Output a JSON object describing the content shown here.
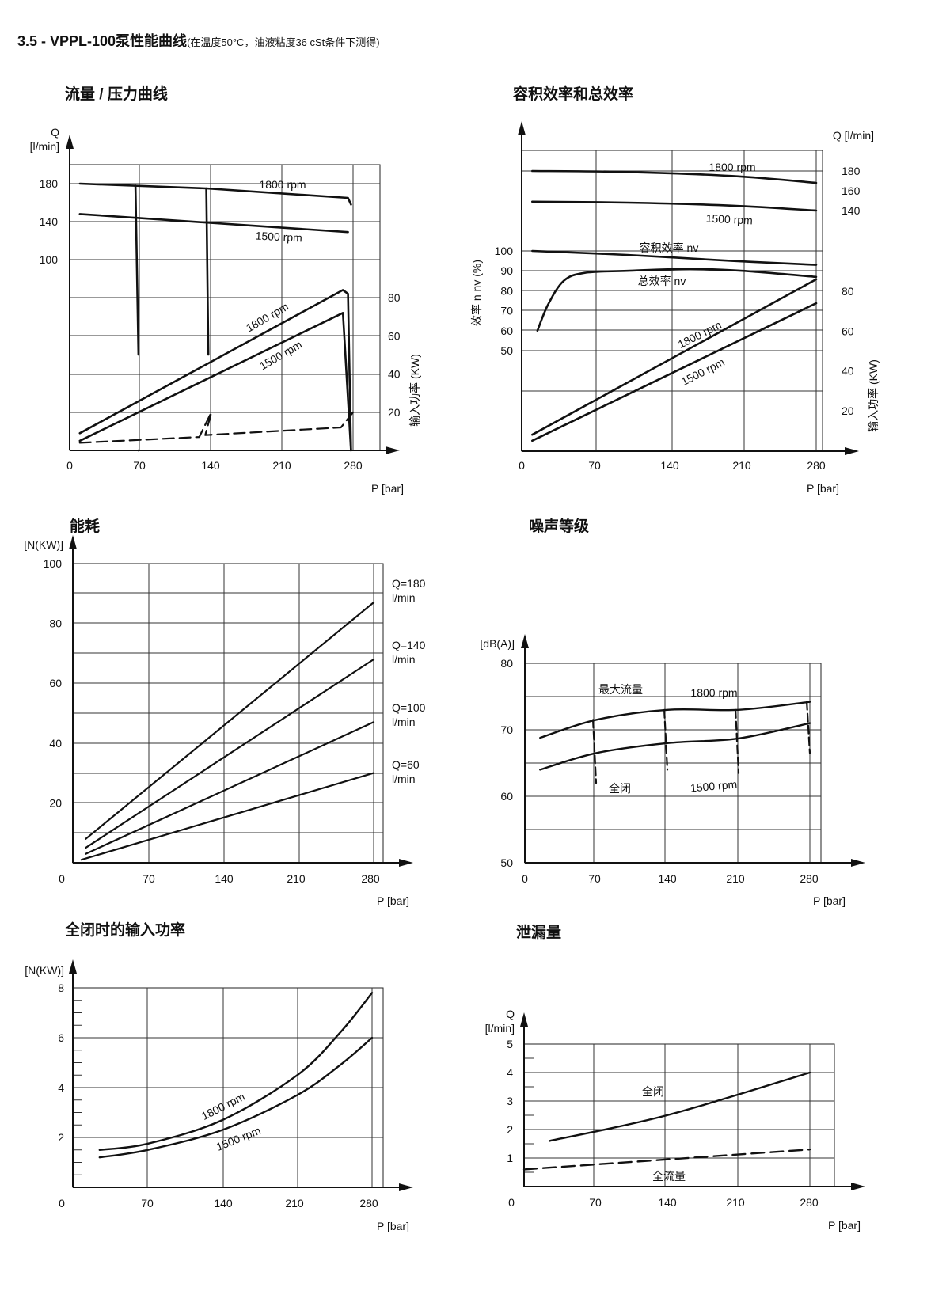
{
  "page": {
    "title": "3.5 - VPPL-100泵性能曲线",
    "subtitle": "(在温度50°C，油液粘度36 cSt条件下测得)"
  },
  "chart_data": [
    {
      "id": "flow-pressure",
      "type": "line",
      "title": "流量 / 压力曲线",
      "xlabel": "P [bar]",
      "ylabel": "Q [l/min]",
      "y2label": "输入功率 (KW)",
      "x_ticks": [
        "0",
        "70",
        "140",
        "210",
        "280"
      ],
      "y_ticks": [
        "100",
        "140",
        "180"
      ],
      "y2_ticks": [
        "20",
        "40",
        "60",
        "80"
      ],
      "grid": true,
      "series": [
        {
          "name": "1800 rpm",
          "axis": "flow",
          "points": [
            [
              10,
              180
            ],
            [
              135,
              175
            ],
            [
              275,
              165
            ],
            [
              278,
              158
            ]
          ]
        },
        {
          "name": "1500 rpm",
          "axis": "flow",
          "points": [
            [
              10,
              148
            ],
            [
              275,
              129
            ]
          ]
        },
        {
          "name": "1800 rpm",
          "axis": "power",
          "points": [
            [
              10,
              9
            ],
            [
              270,
              84
            ],
            [
              275,
              82
            ],
            [
              278,
              0
            ]
          ]
        },
        {
          "name": "1500 rpm",
          "axis": "power",
          "points": [
            [
              10,
              5
            ],
            [
              270,
              72
            ],
            [
              278,
              0
            ]
          ]
        }
      ],
      "cutoffs": [
        {
          "points": [
            [
              65,
              178
            ],
            [
              68,
              0
            ]
          ]
        },
        {
          "points": [
            [
              135,
              175
            ],
            [
              137,
              0
            ]
          ]
        }
      ],
      "dead_head_power": {
        "points": [
          [
            10,
            4
          ],
          [
            128,
            7
          ],
          [
            140,
            20
          ],
          [
            134,
            8
          ],
          [
            268,
            12
          ],
          [
            280,
            20
          ]
        ]
      }
    },
    {
      "id": "efficiency",
      "type": "line",
      "title": "容积效率和总效率",
      "xlabel": "P [bar]",
      "ylabel": "效率  n nv (%)",
      "y_right_label": "Q [l/min]",
      "y2label": "输入功率 (KW)",
      "x_ticks": [
        "0",
        "70",
        "140",
        "210",
        "280"
      ],
      "eff_ticks": [
        "50",
        "60",
        "70",
        "80",
        "90",
        "100"
      ],
      "flow_ticks": [
        "140",
        "160",
        "180"
      ],
      "power_ticks": [
        "20",
        "40",
        "60",
        "80"
      ],
      "grid": true,
      "series": [
        {
          "name": "1800 rpm",
          "axis": "flow",
          "points": [
            [
              10,
              180
            ],
            [
              100,
              179
            ],
            [
              200,
              175
            ],
            [
              280,
              168
            ]
          ]
        },
        {
          "name": "1500 rpm",
          "axis": "flow",
          "points": [
            [
              10,
              149
            ],
            [
              100,
              148
            ],
            [
              200,
              145
            ],
            [
              280,
              140
            ]
          ]
        },
        {
          "name": "容积效率 nv",
          "axis": "eff",
          "points": [
            [
              10,
              100
            ],
            [
              100,
              98
            ],
            [
              200,
              95
            ],
            [
              280,
              93
            ]
          ]
        },
        {
          "name": "总效率 nv",
          "axis": "eff",
          "points": [
            [
              15,
              60
            ],
            [
              25,
              73
            ],
            [
              40,
              85
            ],
            [
              60,
              89
            ],
            [
              100,
              90
            ],
            [
              160,
              91
            ],
            [
              210,
              90
            ],
            [
              280,
              87
            ]
          ]
        },
        {
          "name": "1800 rpm",
          "axis": "power",
          "points": [
            [
              10,
              8
            ],
            [
              280,
              86
            ]
          ]
        },
        {
          "name": "1500 rpm",
          "axis": "power",
          "points": [
            [
              10,
              5
            ],
            [
              280,
              74
            ]
          ]
        }
      ]
    },
    {
      "id": "power-consumption",
      "type": "line",
      "title": "能耗",
      "xlabel": "P [bar]",
      "ylabel": "[N(KW)]",
      "x_ticks": [
        "0",
        "70",
        "140",
        "210",
        "280"
      ],
      "y_ticks": [
        "20",
        "40",
        "60",
        "80",
        "100"
      ],
      "grid": true,
      "series": [
        {
          "name": "Q=180 l/min",
          "points": [
            [
              12,
              8
            ],
            [
              280,
              87
            ]
          ]
        },
        {
          "name": "Q=140 l/min",
          "points": [
            [
              12,
              5
            ],
            [
              280,
              68
            ]
          ]
        },
        {
          "name": "Q=100 l/min",
          "points": [
            [
              12,
              3
            ],
            [
              280,
              47
            ]
          ]
        },
        {
          "name": "Q=60 l/min",
          "points": [
            [
              8,
              1
            ],
            [
              280,
              30
            ]
          ]
        }
      ],
      "series_labels": [
        {
          "line1": "Q=180",
          "line2": "l/min"
        },
        {
          "line1": "Q=140",
          "line2": "l/min"
        },
        {
          "line1": "Q=100",
          "line2": "l/min"
        },
        {
          "line1": "Q=60",
          "line2": "l/min"
        }
      ]
    },
    {
      "id": "noise",
      "type": "line",
      "title": "噪声等级",
      "xlabel": "P [bar]",
      "ylabel": "[dB(A)]",
      "x_ticks": [
        "0",
        "70",
        "140",
        "210",
        "280"
      ],
      "y_ticks": [
        "50",
        "60",
        "70",
        "80"
      ],
      "grid": true,
      "series": [
        {
          "name": "1800 rpm",
          "points": [
            [
              15,
              68.8
            ],
            [
              70,
              71.5
            ],
            [
              140,
              73
            ],
            [
              210,
              73
            ],
            [
              280,
              74.2
            ]
          ]
        },
        {
          "name": "1500 rpm",
          "points": [
            [
              15,
              64
            ],
            [
              70,
              66.5
            ],
            [
              140,
              68
            ],
            [
              210,
              68.7
            ],
            [
              280,
              71
            ]
          ]
        }
      ],
      "dead_head": [
        {
          "points": [
            [
              67,
              71.5
            ],
            [
              70,
              62
            ]
          ]
        },
        {
          "points": [
            [
              137,
              73
            ],
            [
              140,
              64
            ]
          ]
        },
        {
          "points": [
            [
              207,
              73
            ],
            [
              210,
              63.5
            ]
          ]
        },
        {
          "points": [
            [
              277,
              74.2
            ],
            [
              280,
              66.5
            ]
          ]
        }
      ],
      "annotations": {
        "max_flow": "最大流量",
        "closed": "全闭"
      }
    },
    {
      "id": "closed-input-power",
      "type": "line",
      "title": "全闭时的输入功率",
      "xlabel": "P [bar]",
      "ylabel": "[N(KW)]",
      "x_ticks": [
        "0",
        "70",
        "140",
        "210",
        "280"
      ],
      "y_ticks": [
        "2",
        "4",
        "6",
        "8"
      ],
      "grid": true,
      "series": [
        {
          "name": "1800 rpm",
          "points": [
            [
              25,
              1.5
            ],
            [
              70,
              1.75
            ],
            [
              140,
              2.7
            ],
            [
              210,
              4.5
            ],
            [
              250,
              6.2
            ],
            [
              280,
              7.8
            ]
          ]
        },
        {
          "name": "1500 rpm",
          "points": [
            [
              25,
              1.2
            ],
            [
              70,
              1.5
            ],
            [
              140,
              2.3
            ],
            [
              210,
              3.7
            ],
            [
              250,
              4.9
            ],
            [
              280,
              6.0
            ]
          ]
        }
      ]
    },
    {
      "id": "leakage",
      "type": "line",
      "title": "泄漏量",
      "xlabel": "P [bar]",
      "ylabel": "Q [l/min]",
      "x_ticks": [
        "0",
        "70",
        "140",
        "210",
        "280"
      ],
      "y_ticks": [
        "1",
        "2",
        "3",
        "4",
        "5"
      ],
      "grid": true,
      "series": [
        {
          "name": "全闭",
          "points": [
            [
              25,
              1.6
            ],
            [
              140,
              2.5
            ],
            [
              280,
              4.0
            ]
          ]
        },
        {
          "name": "全流量",
          "points": [
            [
              0,
              0.6
            ],
            [
              280,
              1.3
            ]
          ]
        }
      ]
    }
  ]
}
